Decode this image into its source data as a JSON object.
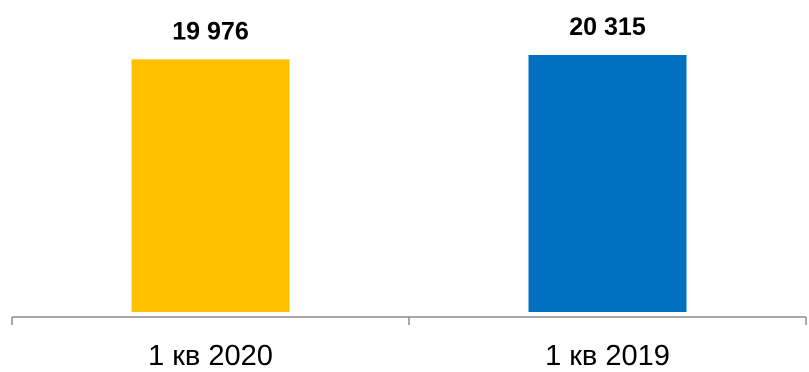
{
  "chart_data": {
    "type": "bar",
    "title": "",
    "xlabel": "",
    "ylabel": "",
    "categories": [
      "1 кв 2020",
      "1 кв 2019"
    ],
    "values": [
      19976,
      20315
    ],
    "value_labels": [
      "19 976",
      "20 315"
    ],
    "colors": [
      "#FFC000",
      "#0070C0"
    ],
    "ylim": [
      0,
      20315
    ],
    "grid": false,
    "legend": "none"
  }
}
